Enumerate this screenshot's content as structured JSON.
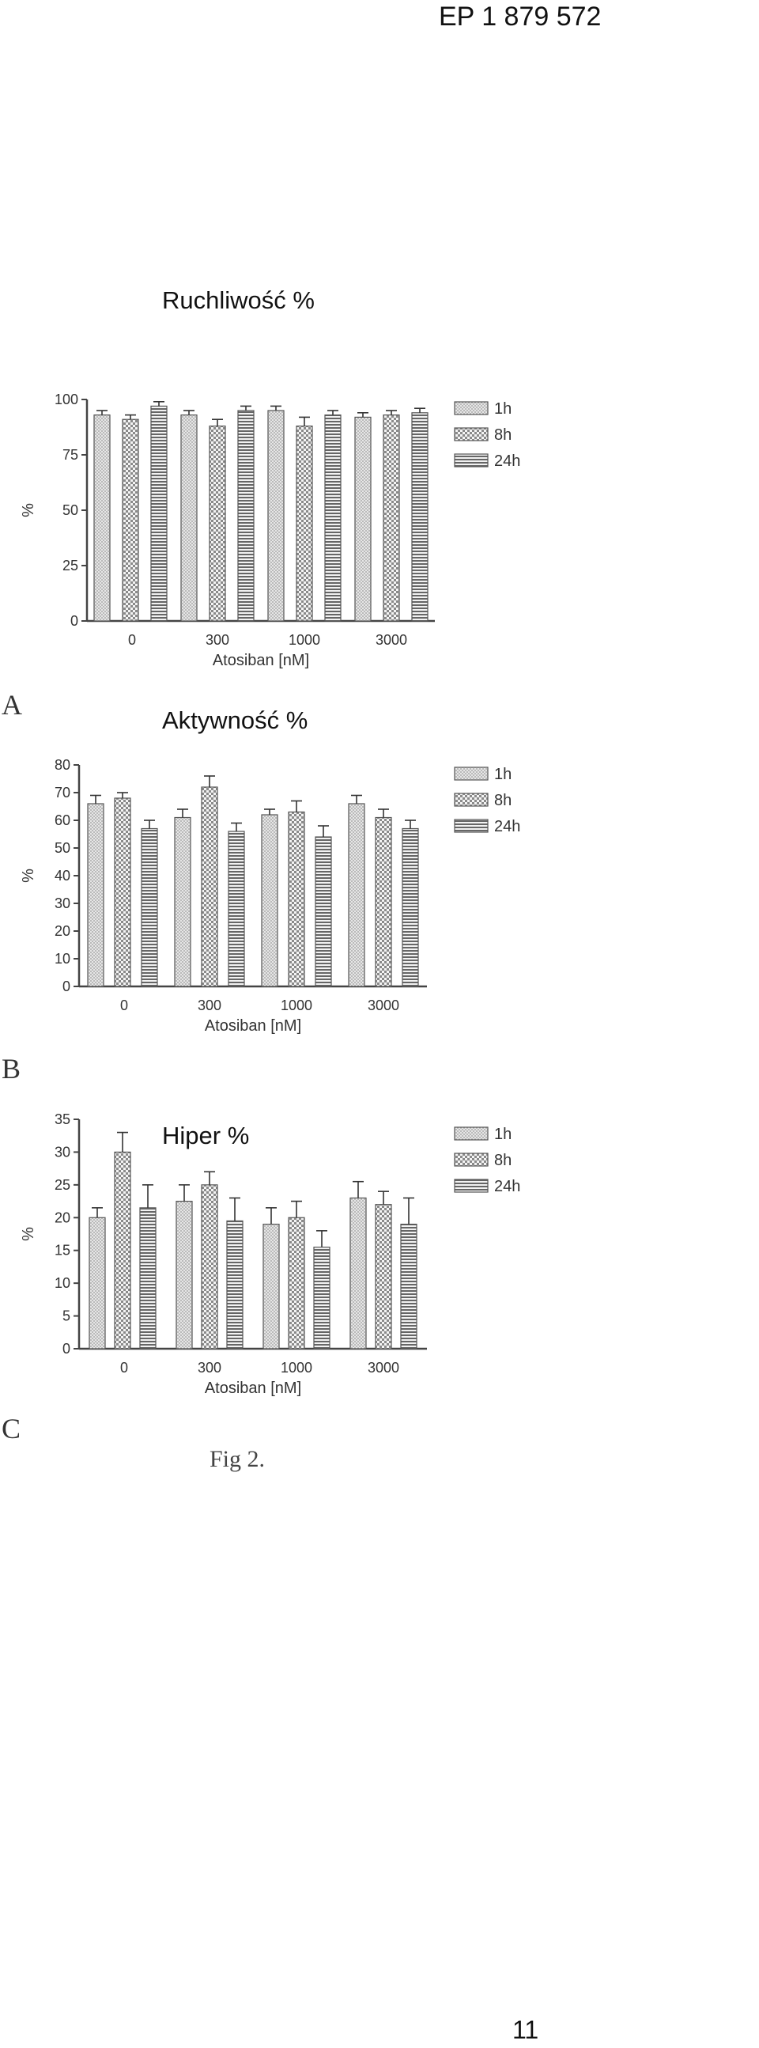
{
  "header": {
    "patent_number": "EP 1 879 572"
  },
  "footer": {
    "page_number": "11",
    "figure_label": "Fig 2."
  },
  "colors": {
    "bar_1h": "#cfcfcf",
    "bar_8h": "#8a8a8a",
    "bar_24h": "#666666",
    "axis": "#444444"
  },
  "chart_data": [
    {
      "type": "bar",
      "panel": "A",
      "title": "Ruchliwość %",
      "xlabel": "Atosiban [nM]",
      "ylabel": "%",
      "categories": [
        "0",
        "300",
        "1000",
        "3000"
      ],
      "ylim": [
        0,
        100
      ],
      "yticks": [
        "0",
        "25",
        "50",
        "75",
        "100"
      ],
      "legend_position": "right",
      "series": [
        {
          "name": "1h",
          "values": [
            93,
            93,
            95,
            92
          ],
          "errors": [
            2,
            2,
            2,
            2
          ]
        },
        {
          "name": "8h",
          "values": [
            91,
            88,
            88,
            93
          ],
          "errors": [
            2,
            3,
            4,
            2
          ]
        },
        {
          "name": "24h",
          "values": [
            97,
            95,
            93,
            94
          ],
          "errors": [
            2,
            2,
            2,
            2
          ]
        }
      ]
    },
    {
      "type": "bar",
      "panel": "B",
      "title": "Aktywność %",
      "xlabel": "Atosiban [nM]",
      "ylabel": "%",
      "categories": [
        "0",
        "300",
        "1000",
        "3000"
      ],
      "ylim": [
        0,
        80
      ],
      "yticks": [
        "0",
        "10",
        "20",
        "30",
        "40",
        "50",
        "60",
        "70",
        "80"
      ],
      "legend_position": "right",
      "series": [
        {
          "name": "1h",
          "values": [
            66,
            61,
            62,
            66
          ],
          "errors": [
            3,
            3,
            2,
            3
          ]
        },
        {
          "name": "8h",
          "values": [
            68,
            72,
            63,
            61
          ],
          "errors": [
            2,
            4,
            4,
            3
          ]
        },
        {
          "name": "24h",
          "values": [
            57,
            56,
            54,
            57
          ],
          "errors": [
            3,
            3,
            4,
            3
          ]
        }
      ]
    },
    {
      "type": "bar",
      "panel": "C",
      "title": "Hiper %",
      "xlabel": "Atosiban [nM]",
      "ylabel": "%",
      "categories": [
        "0",
        "300",
        "1000",
        "3000"
      ],
      "ylim": [
        0,
        35
      ],
      "yticks": [
        "0",
        "5",
        "10",
        "15",
        "20",
        "25",
        "30",
        "35"
      ],
      "legend_position": "right",
      "series": [
        {
          "name": "1h",
          "values": [
            20,
            22.5,
            19,
            23
          ],
          "errors": [
            1.5,
            2.5,
            2.5,
            2.5
          ]
        },
        {
          "name": "8h",
          "values": [
            30,
            25,
            20,
            22
          ],
          "errors": [
            3,
            2,
            2.5,
            2
          ]
        },
        {
          "name": "24h",
          "values": [
            21.5,
            19.5,
            15.5,
            19
          ],
          "errors": [
            3.5,
            3.5,
            2.5,
            4
          ]
        }
      ]
    }
  ]
}
